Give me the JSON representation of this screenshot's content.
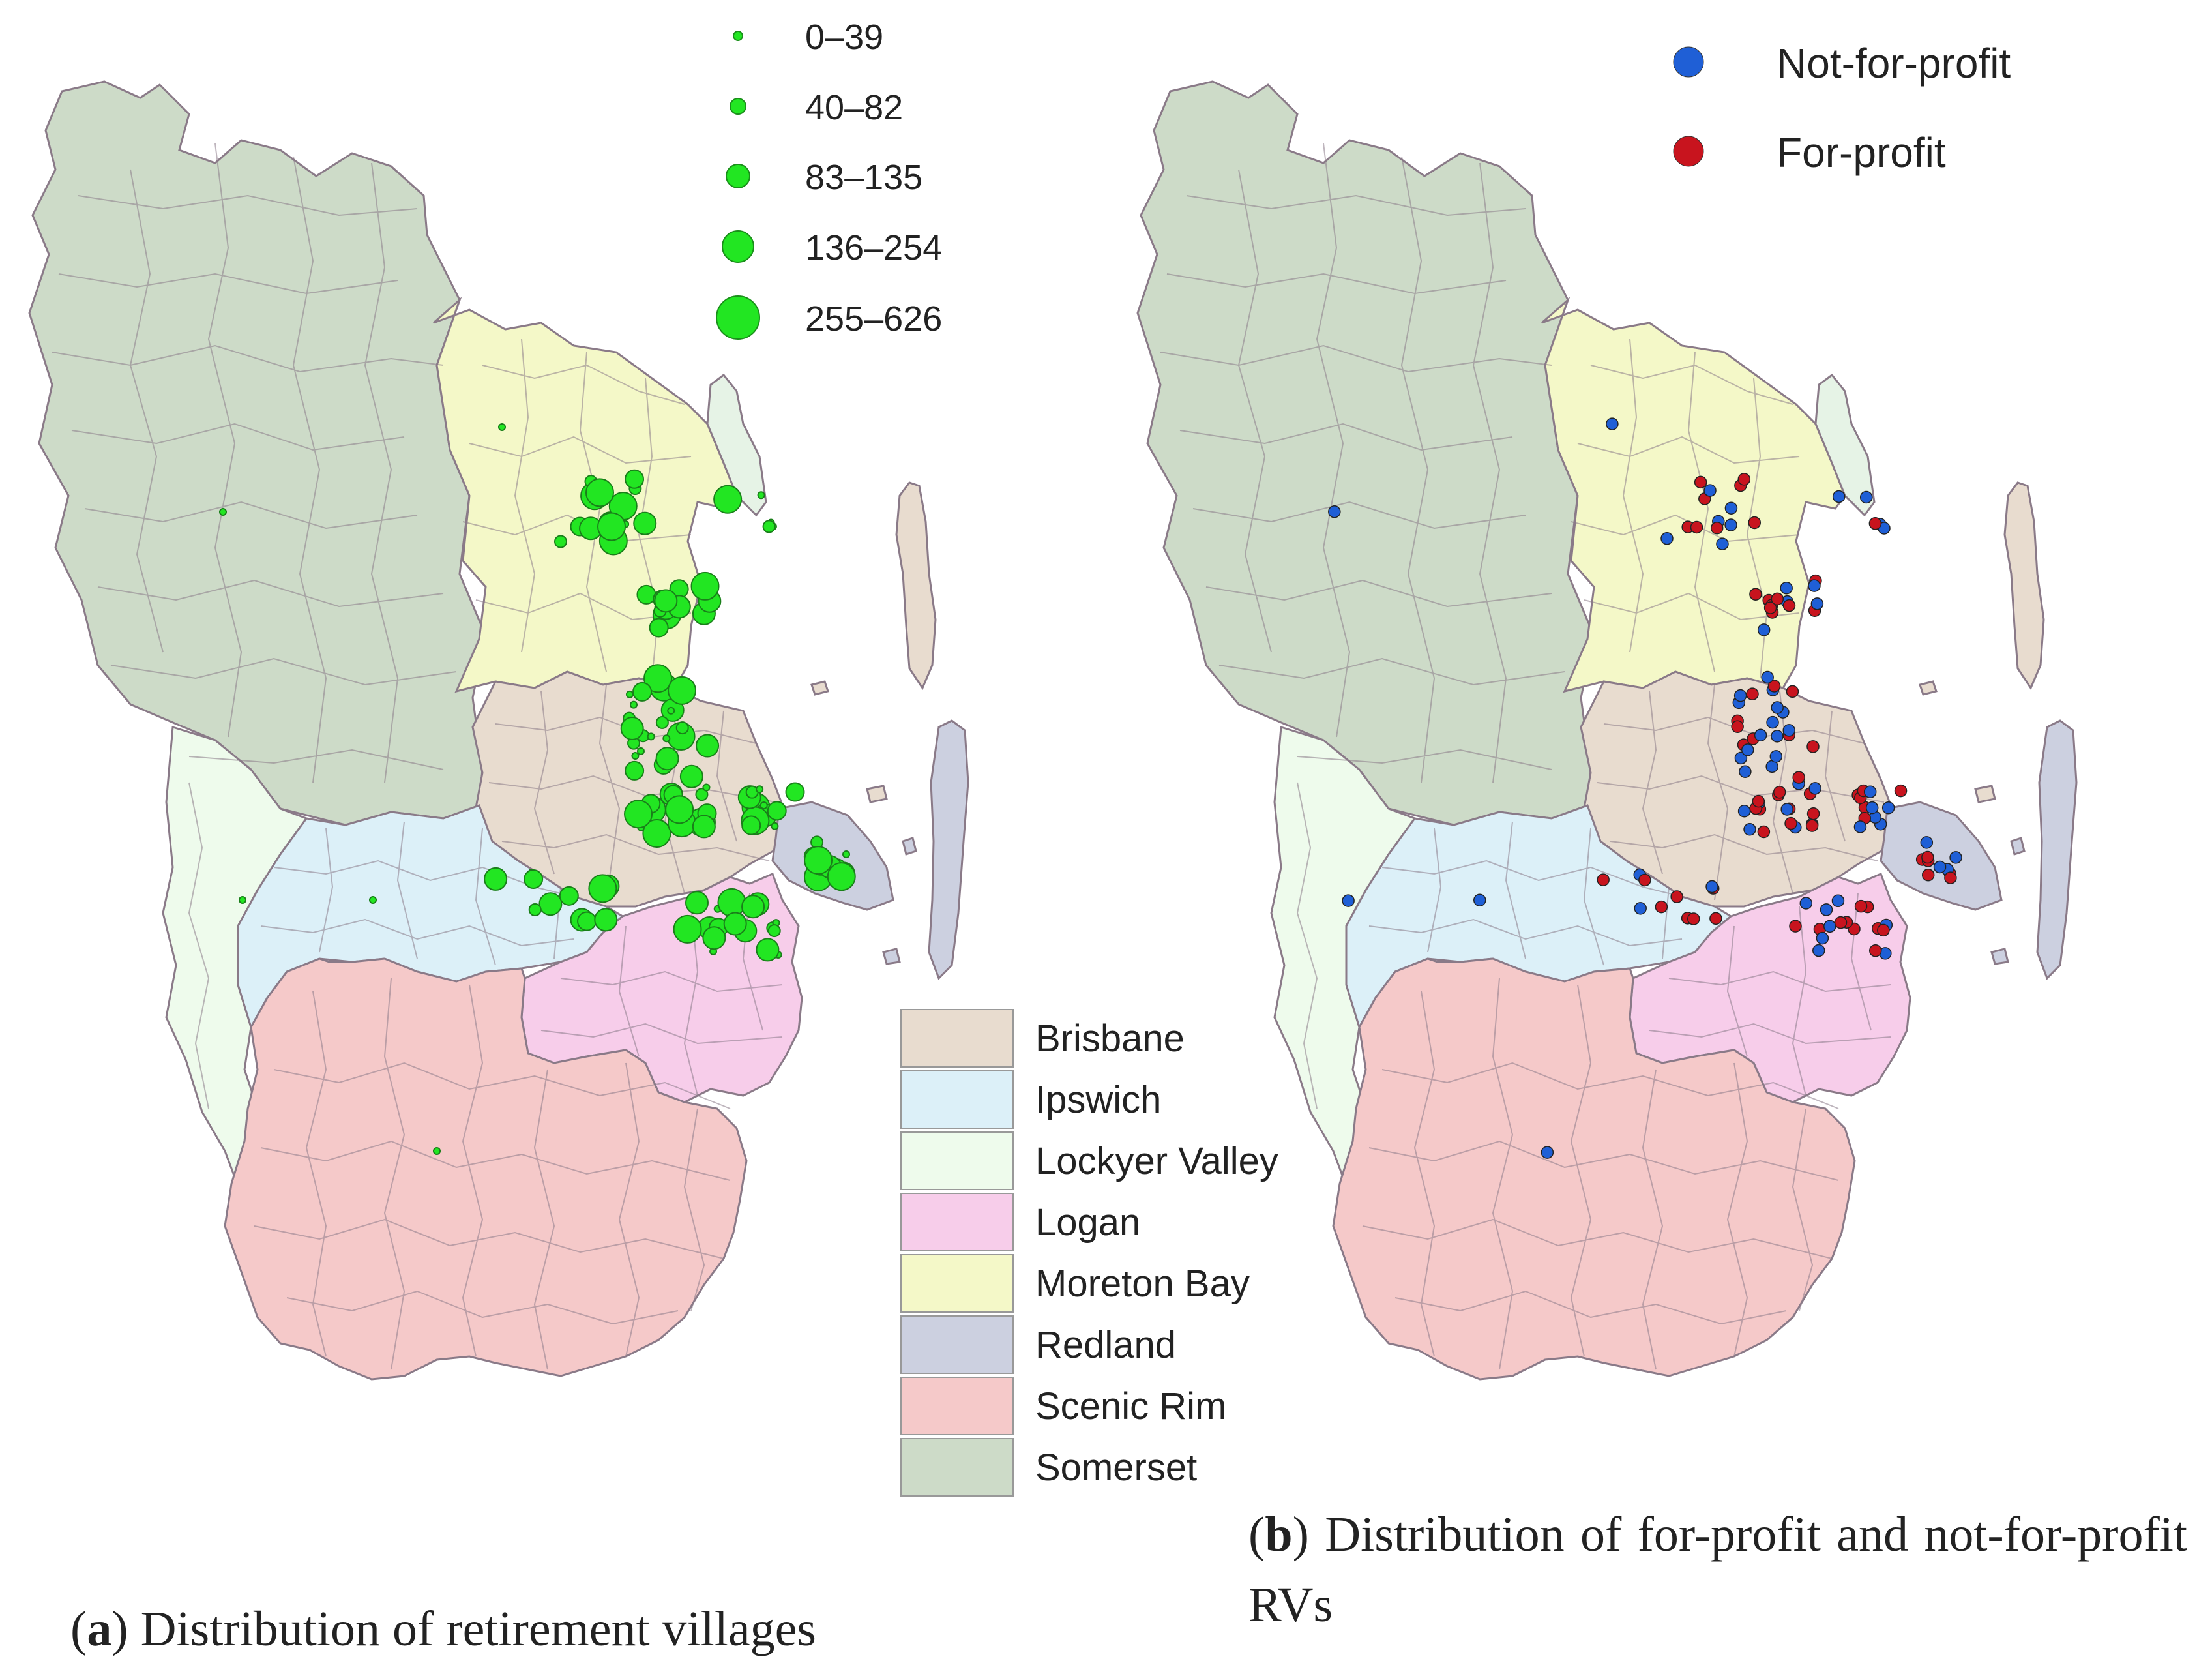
{
  "panel_a": {
    "label": "a",
    "caption": "Distribution of retirement villages",
    "size_legend": {
      "title": "",
      "classes": [
        "0–39",
        "40–82",
        "83–135",
        "136–254",
        "255–626"
      ],
      "color": "#22e622"
    }
  },
  "panel_b": {
    "label": "b",
    "caption": "Distribution of for-profit and not-for-profit RVs",
    "type_legend": [
      {
        "label": "Not-for-profit",
        "color": "#1f5fd6"
      },
      {
        "label": "For-profit",
        "color": "#c8141e"
      }
    ]
  },
  "regions_legend": [
    {
      "name": "Brisbane",
      "color": "#e8dccf"
    },
    {
      "name": "Ipswich",
      "color": "#dcf0f8"
    },
    {
      "name": "Lockyer Valley",
      "color": "#eefbec"
    },
    {
      "name": "Logan",
      "color": "#f7cdea"
    },
    {
      "name": "Moreton Bay",
      "color": "#f4f8c8"
    },
    {
      "name": "Redland",
      "color": "#ccd0e0"
    },
    {
      "name": "Scenic Rim",
      "color": "#f5c9c9"
    },
    {
      "name": "Somerset",
      "color": "#cddbc8"
    }
  ],
  "colors": {
    "boundary": "#8a7a88",
    "water": "#ffffff"
  }
}
